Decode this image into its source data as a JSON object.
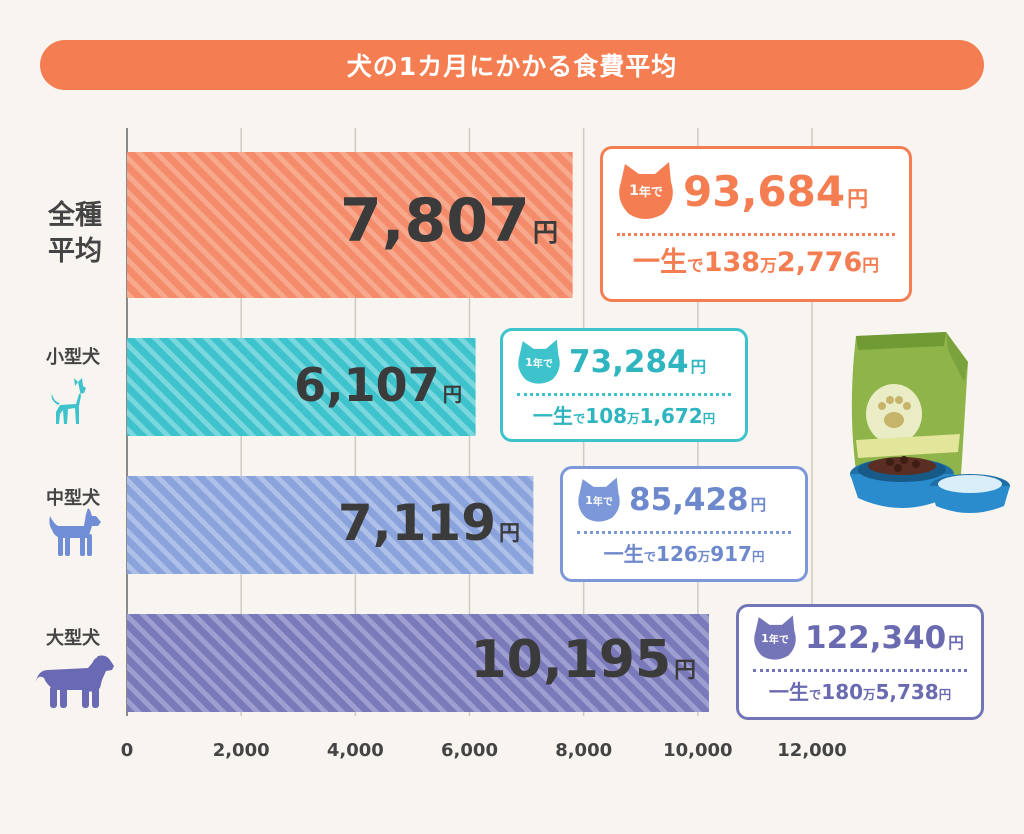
{
  "title": "犬の1カ月にかかる食費平均",
  "colors": {
    "title": "#f47e52",
    "all": "#f48c6c",
    "small": "#3ec3cc",
    "medium": "#7d98d8",
    "large": "#7474b8"
  },
  "chart_data": {
    "type": "bar",
    "orientation": "horizontal",
    "title": "犬の1カ月にかかる食費平均",
    "categories": [
      "全種平均",
      "小型犬",
      "中型犬",
      "大型犬"
    ],
    "values": [
      7807,
      6107,
      7119,
      10195
    ],
    "xlim": [
      0,
      12000
    ],
    "ticks": [
      "0",
      "2,000",
      "4,000",
      "6,000",
      "8,000",
      "10,000",
      "12,000"
    ],
    "grid": true
  },
  "bars": [
    {
      "category_lines": [
        "全種",
        "平均"
      ],
      "category": "全種平均",
      "value_text": "7,807",
      "unit": "円",
      "badge_num": "1",
      "badge_text": "年で",
      "yearly": "93,684",
      "yearly_unit": "円",
      "lifetime_prefix": "一生",
      "lifetime_de": "で",
      "lifetime_man": "138",
      "lifetime_man_unit": "万",
      "lifetime_rest": "2,776",
      "lifetime_unit": "円"
    },
    {
      "category": "小型犬",
      "value_text": "6,107",
      "unit": "円",
      "badge_num": "1",
      "badge_text": "年で",
      "yearly": "73,284",
      "yearly_unit": "円",
      "lifetime_prefix": "一生",
      "lifetime_de": "で",
      "lifetime_man": "108",
      "lifetime_man_unit": "万",
      "lifetime_rest": "1,672",
      "lifetime_unit": "円"
    },
    {
      "category": "中型犬",
      "value_text": "7,119",
      "unit": "円",
      "badge_num": "1",
      "badge_text": "年で",
      "yearly": "85,428",
      "yearly_unit": "円",
      "lifetime_prefix": "一生",
      "lifetime_de": "で",
      "lifetime_man": "126",
      "lifetime_man_unit": "万",
      "lifetime_rest": "917",
      "lifetime_unit": "円"
    },
    {
      "category": "大型犬",
      "value_text": "10,195",
      "unit": "円",
      "badge_num": "1",
      "badge_text": "年で",
      "yearly": "122,340",
      "yearly_unit": "円",
      "lifetime_prefix": "一生",
      "lifetime_de": "で",
      "lifetime_man": "180",
      "lifetime_man_unit": "万",
      "lifetime_rest": "5,738",
      "lifetime_unit": "円"
    }
  ],
  "icons": [
    "small-dog-icon",
    "medium-dog-icon",
    "large-dog-icon",
    "dog-food-bag-icon",
    "food-bowl-icon"
  ]
}
